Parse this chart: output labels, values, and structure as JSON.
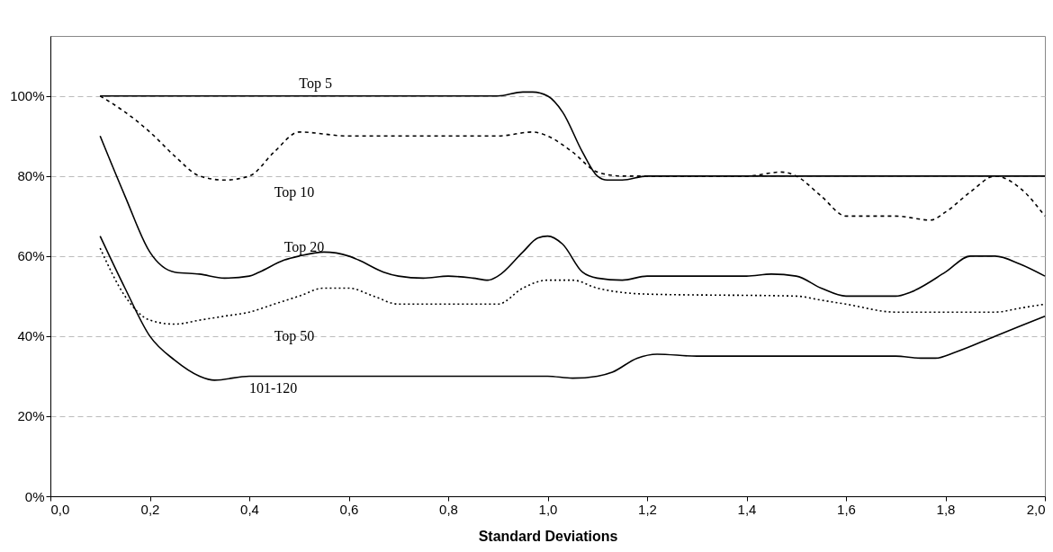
{
  "chart_data": {
    "type": "line",
    "xlabel": "Standard Deviations",
    "xlim": [
      0,
      2
    ],
    "ylim": [
      0,
      115
    ],
    "xticks": [
      {
        "value": 0,
        "label": "0,0"
      },
      {
        "value": 0.2,
        "label": "0,2"
      },
      {
        "value": 0.4,
        "label": "0,4"
      },
      {
        "value": 0.6,
        "label": "0,6"
      },
      {
        "value": 0.8,
        "label": "0,8"
      },
      {
        "value": 1.0,
        "label": "1,0"
      },
      {
        "value": 1.2,
        "label": "1,2"
      },
      {
        "value": 1.4,
        "label": "1,4"
      },
      {
        "value": 1.6,
        "label": "1,6"
      },
      {
        "value": 1.8,
        "label": "1,8"
      },
      {
        "value": 2.0,
        "label": "2,0"
      }
    ],
    "yticks": [
      {
        "value": 0,
        "label": "0%"
      },
      {
        "value": 20,
        "label": "20%"
      },
      {
        "value": 40,
        "label": "40%"
      },
      {
        "value": 60,
        "label": "60%"
      },
      {
        "value": 80,
        "label": "80%"
      },
      {
        "value": 100,
        "label": "100%"
      }
    ],
    "grid": "y",
    "marker": "none",
    "series": [
      {
        "name": "Top 5",
        "color": "#000000",
        "line_style": "solid",
        "x": [
          0.1,
          0.5,
          0.9,
          0.95,
          0.97,
          1.0,
          1.03,
          1.07,
          1.1,
          1.12,
          1.15,
          1.2,
          2.0
        ],
        "values": [
          100,
          100,
          100,
          101,
          101,
          100,
          96,
          86,
          80,
          79,
          79,
          80,
          80
        ]
      },
      {
        "name": "Top 10",
        "color": "#000000",
        "line_style": "dashed",
        "x": [
          0.1,
          0.15,
          0.2,
          0.25,
          0.3,
          0.35,
          0.4,
          0.45,
          0.5,
          0.6,
          0.9,
          0.97,
          1.0,
          1.05,
          1.1,
          1.15,
          1.4,
          1.47,
          1.5,
          1.55,
          1.6,
          1.7,
          1.77,
          1.8,
          1.85,
          1.9,
          1.95,
          2.0
        ],
        "values": [
          100,
          96,
          91,
          85,
          80,
          79,
          80,
          86,
          91,
          90,
          90,
          91,
          90,
          86,
          81,
          80,
          80,
          81,
          80,
          75,
          70,
          70,
          69,
          71,
          76,
          80,
          77,
          70
        ]
      },
      {
        "name": "Top 20",
        "color": "#000000",
        "line_style": "solid",
        "x": [
          0.1,
          0.15,
          0.2,
          0.25,
          0.3,
          0.35,
          0.4,
          0.42,
          0.47,
          0.5,
          0.55,
          0.6,
          0.62,
          0.67,
          0.7,
          0.75,
          0.8,
          0.85,
          0.88,
          0.9,
          0.95,
          0.98,
          1.0,
          1.03,
          1.07,
          1.1,
          1.15,
          1.2,
          1.3,
          1.4,
          1.45,
          1.5,
          1.55,
          1.6,
          1.7,
          1.73,
          1.8,
          1.85,
          1.9,
          1.95,
          2.0
        ],
        "values": [
          90,
          75,
          61,
          56,
          55.5,
          54.5,
          55,
          56,
          59,
          60,
          61,
          60,
          59,
          56,
          55,
          54.5,
          55,
          54.5,
          54,
          55,
          61,
          64.5,
          65,
          63,
          56,
          54.5,
          54,
          55,
          55,
          55,
          55.5,
          55,
          52,
          50,
          50,
          51,
          56,
          60,
          60,
          58,
          55
        ]
      },
      {
        "name": "Top 50",
        "color": "#000000",
        "line_style": "dotted",
        "x": [
          0.1,
          0.15,
          0.2,
          0.25,
          0.3,
          0.35,
          0.4,
          0.45,
          0.5,
          0.55,
          0.6,
          0.65,
          0.7,
          0.8,
          0.9,
          0.95,
          1.0,
          1.05,
          1.1,
          1.2,
          1.5,
          1.55,
          1.6,
          1.7,
          1.8,
          1.9,
          1.95,
          2.0
        ],
        "values": [
          62,
          50,
          44,
          43,
          44,
          45,
          46,
          48,
          50,
          52,
          52,
          50,
          48,
          48,
          48,
          52,
          54,
          54,
          52,
          50.5,
          50,
          49,
          48,
          46,
          46,
          46,
          47,
          48
        ]
      },
      {
        "name": "101-120",
        "color": "#000000",
        "line_style": "solid",
        "x": [
          0.1,
          0.15,
          0.2,
          0.25,
          0.3,
          0.33,
          0.4,
          1.0,
          1.05,
          1.1,
          1.13,
          1.18,
          1.22,
          1.3,
          1.7,
          1.75,
          1.78,
          1.82,
          1.9,
          2.0
        ],
        "values": [
          65,
          52,
          40,
          34,
          30,
          29,
          30,
          30,
          29.5,
          30,
          31,
          34.5,
          35.5,
          35,
          35,
          34.5,
          34.5,
          36,
          40,
          45
        ]
      }
    ]
  }
}
